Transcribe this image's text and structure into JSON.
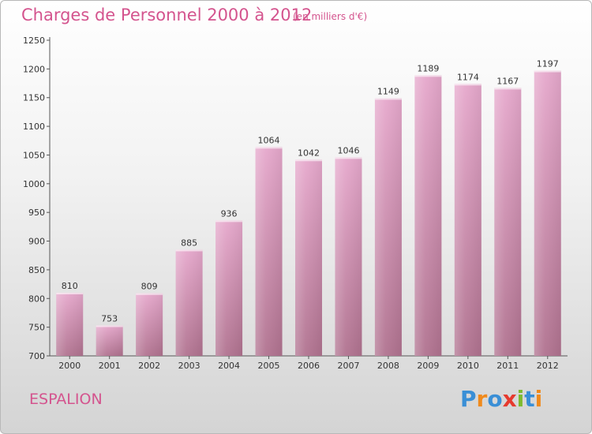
{
  "title": "Charges de Personnel 2000 à 2012",
  "subtitle": "(en milliers d'€)",
  "commune": "ESPALION",
  "logo": {
    "text": "Proxiti",
    "letters": [
      "P",
      "r",
      "o",
      "x",
      "i",
      "t",
      "i"
    ],
    "colors": [
      "#3a8fd6",
      "#f08a1c",
      "#3a8fd6",
      "#e63a2e",
      "#7dbb2e",
      "#3a8fd6",
      "#f08a1c"
    ]
  },
  "colors": {
    "accent": "#d4548e",
    "bar_top": "#e6a8cc",
    "bar_bottom": "#b0728f",
    "axis": "#555555"
  },
  "chart_data": {
    "type": "bar",
    "categories": [
      "2000",
      "2001",
      "2002",
      "2003",
      "2004",
      "2005",
      "2006",
      "2007",
      "2008",
      "2009",
      "2010",
      "2011",
      "2012"
    ],
    "values": [
      810,
      753,
      809,
      885,
      936,
      1064,
      1042,
      1046,
      1149,
      1189,
      1174,
      1167,
      1197
    ],
    "title": "Charges de Personnel 2000 à 2012",
    "xlabel": "",
    "ylabel": "",
    "ylim": [
      700,
      1250
    ],
    "yticks": [
      700,
      750,
      800,
      850,
      900,
      950,
      1000,
      1050,
      1100,
      1150,
      1200,
      1250
    ],
    "grid": false,
    "data_labels": true
  }
}
